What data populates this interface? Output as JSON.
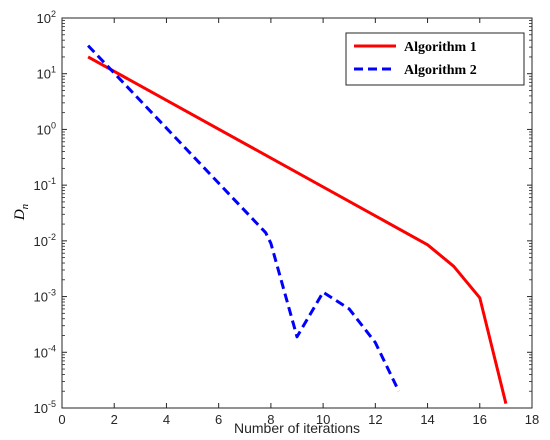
{
  "chart_data": {
    "type": "line",
    "title": "",
    "xlabel": "Number of iterations",
    "ylabel_main": "D",
    "ylabel_sub": "n",
    "xlim": [
      0,
      18
    ],
    "ylim": [
      1e-05,
      100
    ],
    "yscale": "log",
    "grid": false,
    "legend_position": "top-right",
    "x_ticks": [
      "0",
      "2",
      "4",
      "6",
      "8",
      "10",
      "12",
      "14",
      "16",
      "18"
    ],
    "y_ticks": [
      {
        "base": "10",
        "exp": "-5"
      },
      {
        "base": "10",
        "exp": "-4"
      },
      {
        "base": "10",
        "exp": "-3"
      },
      {
        "base": "10",
        "exp": "-2"
      },
      {
        "base": "10",
        "exp": "-1"
      },
      {
        "base": "10",
        "exp": "0"
      },
      {
        "base": "10",
        "exp": "1"
      },
      {
        "base": "10",
        "exp": "2"
      }
    ],
    "series": [
      {
        "name": "Algorithm 1",
        "color": "#ff0000",
        "dash": "solid",
        "x": [
          1,
          14,
          15,
          16,
          17
        ],
        "y": [
          20,
          0.0085,
          0.0035,
          0.00095,
          1.2e-05
        ]
      },
      {
        "name": "Algorithm 2",
        "color": "#0000ff",
        "dash": "dashed",
        "x": [
          1,
          7.8,
          8,
          9,
          10,
          11,
          12,
          12.9
        ],
        "y": [
          32,
          0.014,
          0.009,
          0.00019,
          0.0012,
          0.0006,
          0.00015,
          2e-05
        ]
      }
    ]
  }
}
